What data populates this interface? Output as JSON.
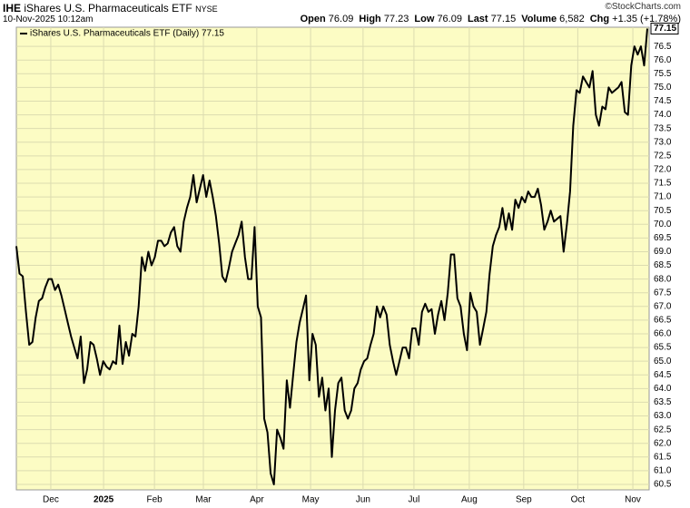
{
  "chart_data": {
    "type": "line",
    "symbol": "IHE",
    "title": "iShares U.S. Pharmaceuticals ETF",
    "exchange": "NYSE",
    "timestamp": "10-Nov-2025 10:12am",
    "credit": "©StockCharts.com",
    "quote": [
      {
        "label": "Open",
        "value": 76.09
      },
      {
        "label": "High",
        "value": 77.23
      },
      {
        "label": "Low",
        "value": 76.09
      },
      {
        "label": "Last",
        "value": 77.15
      },
      {
        "label": "Volume",
        "value": "6,582"
      },
      {
        "label": "Chg",
        "value": "+1.35 (+1.78%)"
      }
    ],
    "series": [
      {
        "name": "iShares U.S. Pharmaceuticals ETF (Daily) 77.15",
        "color": "#000000",
        "values": [
          69.2,
          68.2,
          68.1,
          66.8,
          65.6,
          65.7,
          66.6,
          67.2,
          67.3,
          67.7,
          68.0,
          68.0,
          67.6,
          67.8,
          67.4,
          66.9,
          66.4,
          65.9,
          65.5,
          65.1,
          65.9,
          64.2,
          64.7,
          65.7,
          65.6,
          65.1,
          64.5,
          65.0,
          64.8,
          64.7,
          65.0,
          64.9,
          66.3,
          64.9,
          65.7,
          65.2,
          66.0,
          65.9,
          67.0,
          68.8,
          68.3,
          69.0,
          68.5,
          68.8,
          69.4,
          69.4,
          69.2,
          69.3,
          69.7,
          69.9,
          69.2,
          69.0,
          70.1,
          70.6,
          71.0,
          71.8,
          70.8,
          71.3,
          71.8,
          71.0,
          71.6,
          71.0,
          70.3,
          69.3,
          68.1,
          67.9,
          68.4,
          69.0,
          69.3,
          69.6,
          70.1,
          68.8,
          68.0,
          68.0,
          69.9,
          67.0,
          66.6,
          62.9,
          62.4,
          60.9,
          60.5,
          62.5,
          62.2,
          61.8,
          64.3,
          63.3,
          64.5,
          65.7,
          66.4,
          66.9,
          67.4,
          64.3,
          66.0,
          65.6,
          63.7,
          64.4,
          63.2,
          64.0,
          61.5,
          63.2,
          64.2,
          64.4,
          63.2,
          62.9,
          63.2,
          64.0,
          64.2,
          64.7,
          65.0,
          65.1,
          65.6,
          66.0,
          67.0,
          66.6,
          67.0,
          66.7,
          65.6,
          65.0,
          64.5,
          65.0,
          65.5,
          65.5,
          65.1,
          66.2,
          66.2,
          65.6,
          66.8,
          67.1,
          66.8,
          66.9,
          66.0,
          66.7,
          67.2,
          66.5,
          67.5,
          68.9,
          68.9,
          67.3,
          67.0,
          66.0,
          65.4,
          67.5,
          67.0,
          66.8,
          65.6,
          66.2,
          66.8,
          68.2,
          69.2,
          69.6,
          69.9,
          70.6,
          69.8,
          70.4,
          69.8,
          70.9,
          70.6,
          71.0,
          70.8,
          71.2,
          71.0,
          71.0,
          71.3,
          70.7,
          69.8,
          70.1,
          70.5,
          70.1,
          70.2,
          70.3,
          69.0,
          70.0,
          71.2,
          73.6,
          74.9,
          74.8,
          75.4,
          75.2,
          75.0,
          75.6,
          74.0,
          73.6,
          74.3,
          74.2,
          75.0,
          74.8,
          74.9,
          75.0,
          75.2,
          74.1,
          74.0,
          75.8,
          76.5,
          76.2,
          76.5,
          75.8,
          77.15
        ]
      }
    ],
    "last_value": 77.15,
    "xlim": [
      0,
      196
    ],
    "xticks": [
      {
        "value": 10.7,
        "label": "Dec"
      },
      {
        "value": 27.1,
        "label": "2025"
      },
      {
        "value": 42.9,
        "label": "Feb"
      },
      {
        "value": 58.1,
        "label": "Mar"
      },
      {
        "value": 74.7,
        "label": "Apr"
      },
      {
        "value": 91.4,
        "label": "May"
      },
      {
        "value": 107.7,
        "label": "Jun"
      },
      {
        "value": 123.5,
        "label": "Jul"
      },
      {
        "value": 140.7,
        "label": "Aug"
      },
      {
        "value": 157.6,
        "label": "Sep"
      },
      {
        "value": 174.4,
        "label": "Oct"
      },
      {
        "value": 191.5,
        "label": "Nov"
      }
    ],
    "ylim": [
      60.3,
      77.2
    ],
    "yticks": [
      60.5,
      {
        "value": 61,
        "label": "61.0"
      },
      61.5,
      {
        "value": 62,
        "label": "62.0"
      },
      62.5,
      {
        "value": 63,
        "label": "63.0"
      },
      63.5,
      {
        "value": 64,
        "label": "64.0"
      },
      64.5,
      {
        "value": 65,
        "label": "65.0"
      },
      65.5,
      {
        "value": 66,
        "label": "66.0"
      },
      66.5,
      {
        "value": 67,
        "label": "67.0"
      },
      67.5,
      {
        "value": 68,
        "label": "68.0"
      },
      68.5,
      {
        "value": 69,
        "label": "69.0"
      },
      69.5,
      {
        "value": 70,
        "label": "70.0"
      },
      70.5,
      {
        "value": 71,
        "label": "71.0"
      },
      71.5,
      {
        "value": 72,
        "label": "72.0"
      },
      72.5,
      {
        "value": 73,
        "label": "73.0"
      },
      73.5,
      {
        "value": 74,
        "label": "74.0"
      },
      74.5,
      {
        "value": 75,
        "label": "75.0"
      },
      75.5,
      {
        "value": 76,
        "label": "76.0"
      },
      76.5
    ],
    "grid": true,
    "background": "#fcfcc4"
  }
}
